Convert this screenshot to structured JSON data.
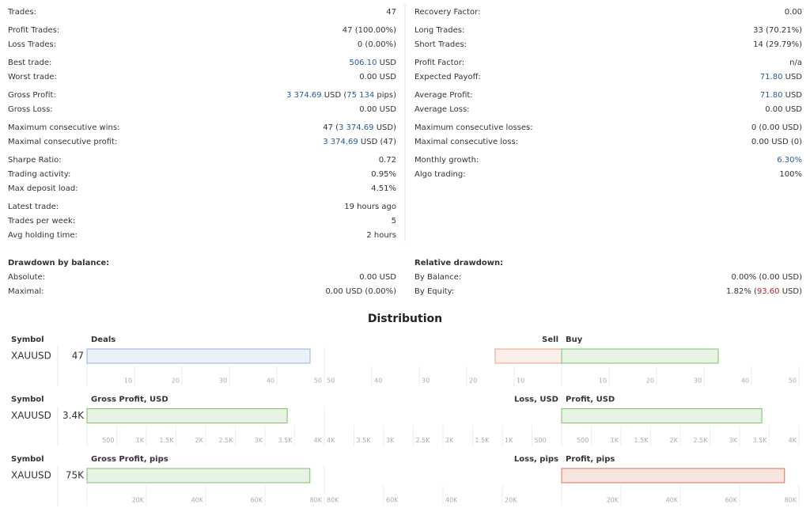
{
  "stats": {
    "left": [
      [
        {
          "label": "Trades:",
          "value": [
            {
              "text": "47"
            }
          ]
        }
      ],
      [
        {
          "label": "Profit Trades:",
          "value": [
            {
              "text": "47 (100.00%)"
            }
          ]
        },
        {
          "label": "Loss Trades:",
          "value": [
            {
              "text": "0 (0.00%)"
            }
          ]
        }
      ],
      [
        {
          "label": "Best trade:",
          "value": [
            {
              "text": "506.10",
              "color": "#2a5a9a"
            },
            {
              "text": " USD"
            }
          ]
        },
        {
          "label": "Worst trade:",
          "value": [
            {
              "text": "0.00 USD"
            }
          ]
        }
      ],
      [
        {
          "label": "Gross Profit:",
          "value": [
            {
              "text": "3 374.69",
              "color": "#2a5a9a"
            },
            {
              "text": " USD ("
            },
            {
              "text": "75 134",
              "color": "#2a5a9a"
            },
            {
              "text": " pips)"
            }
          ]
        },
        {
          "label": "Gross Loss:",
          "value": [
            {
              "text": "0.00 USD"
            }
          ]
        }
      ],
      [
        {
          "label": "Maximum consecutive wins:",
          "value": [
            {
              "text": "47 ("
            },
            {
              "text": "3 374.69",
              "color": "#2a5a9a"
            },
            {
              "text": " USD)"
            }
          ]
        },
        {
          "label": "Maximal consecutive profit:",
          "value": [
            {
              "text": "3 374.69",
              "color": "#2a5a9a"
            },
            {
              "text": " USD (47)"
            }
          ]
        }
      ],
      [
        {
          "label": "Sharpe Ratio:",
          "value": [
            {
              "text": "0.72"
            }
          ]
        },
        {
          "label": "Trading activity:",
          "value": [
            {
              "text": "0.95%"
            }
          ]
        },
        {
          "label": "Max deposit load:",
          "value": [
            {
              "text": "4.51%"
            }
          ]
        }
      ],
      [
        {
          "label": "Latest trade:",
          "value": [
            {
              "text": "19 hours ago"
            }
          ]
        },
        {
          "label": "Trades per week:",
          "value": [
            {
              "text": "5"
            }
          ]
        },
        {
          "label": "Avg holding time:",
          "value": [
            {
              "text": "2 hours"
            }
          ]
        }
      ]
    ],
    "right": [
      [
        {
          "label": "Recovery Factor:",
          "value": [
            {
              "text": "0.00"
            }
          ]
        }
      ],
      [
        {
          "label": "Long Trades:",
          "value": [
            {
              "text": "33 (70.21%)"
            }
          ]
        },
        {
          "label": "Short Trades:",
          "value": [
            {
              "text": "14 (29.79%)"
            }
          ]
        }
      ],
      [
        {
          "label": "Profit Factor:",
          "value": [
            {
              "text": "n/a"
            }
          ]
        },
        {
          "label": "Expected Payoff:",
          "value": [
            {
              "text": "71.80",
              "color": "#2a5a9a"
            },
            {
              "text": " USD"
            }
          ]
        }
      ],
      [
        {
          "label": "Average Profit:",
          "value": [
            {
              "text": "71.80",
              "color": "#2a5a9a"
            },
            {
              "text": " USD"
            }
          ]
        },
        {
          "label": "Average Loss:",
          "value": [
            {
              "text": "0.00 USD"
            }
          ]
        }
      ],
      [
        {
          "label": "Maximum consecutive losses:",
          "value": [
            {
              "text": "0 (0.00 USD)"
            }
          ]
        },
        {
          "label": "Maximal consecutive loss:",
          "value": [
            {
              "text": "0.00 USD (0)"
            }
          ]
        }
      ],
      [
        {
          "label": "Monthly growth:",
          "value": [
            {
              "text": "6.30%",
              "color": "#2a5a9a"
            }
          ]
        },
        {
          "label": "Algo trading:",
          "value": [
            {
              "text": "100%"
            }
          ]
        }
      ]
    ]
  },
  "drawdown": {
    "left": {
      "title": "Drawdown by balance:",
      "rows": [
        {
          "label": "Absolute:",
          "value": [
            {
              "text": "0.00 USD"
            }
          ]
        },
        {
          "label": "Maximal:",
          "value": [
            {
              "text": "0.00 USD (0.00%)"
            }
          ]
        }
      ]
    },
    "right": {
      "title": "Relative drawdown:",
      "rows": [
        {
          "label": "By Balance:",
          "value": [
            {
              "text": "0.00% (0.00 USD)"
            }
          ]
        },
        {
          "label": "By Equity:",
          "value": [
            {
              "text": "1.82% ("
            },
            {
              "text": "93.60",
              "color": "#c0202a"
            },
            {
              "text": " USD)"
            }
          ]
        }
      ]
    }
  },
  "distribution": {
    "title": "Distribution",
    "panels": [
      {
        "symbol_header": "Symbol",
        "symbol": "XAUUSD",
        "value": 47,
        "total": {
          "title": "Deals",
          "xlim": [
            0,
            50
          ],
          "xticks": [
            10,
            20,
            30,
            40,
            50
          ],
          "color": "#8fb3dc"
        },
        "loss": {
          "title": "Sell",
          "xlim": [
            50,
            0
          ],
          "xticks": [
            50,
            40,
            30,
            20,
            10
          ],
          "value": 14,
          "color": "#f0a080"
        },
        "profit": {
          "title": "Buy",
          "xlim": [
            0,
            50
          ],
          "xticks": [
            10,
            20,
            30,
            40,
            50
          ],
          "value": 33,
          "color": "#7cc06a"
        }
      },
      {
        "symbol_header": "Symbol",
        "symbol": "XAUUSD",
        "value": 3374.69,
        "value_label": "3.4K",
        "total": {
          "title": "Gross Profit, USD",
          "xlim": [
            0,
            4000
          ],
          "xticks": [
            500,
            {
              "value": 1000,
              "label": "1K"
            },
            {
              "value": 1500,
              "label": "1.5K"
            },
            {
              "value": 2000,
              "label": "2K"
            },
            {
              "value": 2500,
              "label": "2.5K"
            },
            {
              "value": 3000,
              "label": "3K"
            },
            {
              "value": 3500,
              "label": "3.5K"
            },
            {
              "value": 4000,
              "label": "4K"
            }
          ],
          "color": "#7cc06a"
        },
        "loss": {
          "title": "Loss, USD",
          "xlim": [
            4000,
            0
          ],
          "xticks": [
            {
              "value": 4000,
              "label": "4K"
            },
            {
              "value": 3500,
              "label": "3.5K"
            },
            {
              "value": 3000,
              "label": "3K"
            },
            {
              "value": 2500,
              "label": "2.5K"
            },
            {
              "value": 2000,
              "label": "2K"
            },
            {
              "value": 1500,
              "label": "1.5K"
            },
            {
              "value": 1000,
              "label": "1K"
            },
            500
          ],
          "value": 0,
          "color": "#f0a080"
        },
        "profit": {
          "title": "Profit, USD",
          "xlim": [
            0,
            4000
          ],
          "xticks": [
            500,
            {
              "value": 1000,
              "label": "1K"
            },
            {
              "value": 1500,
              "label": "1.5K"
            },
            {
              "value": 2000,
              "label": "2K"
            },
            {
              "value": 2500,
              "label": "2.5K"
            },
            {
              "value": 3000,
              "label": "3K"
            },
            {
              "value": 3500,
              "label": "3.5K"
            },
            {
              "value": 4000,
              "label": "4K"
            }
          ],
          "value": 3374.69,
          "color": "#7cc06a"
        }
      },
      {
        "symbol_header": "Symbol",
        "symbol": "XAUUSD",
        "value": 75134,
        "value_label": "75K",
        "total": {
          "title": "Gross Profit, pips",
          "xlim": [
            0,
            80000
          ],
          "xticks": [
            {
              "value": 20000,
              "label": "20K"
            },
            {
              "value": 40000,
              "label": "40K"
            },
            {
              "value": 60000,
              "label": "60K"
            },
            {
              "value": 80000,
              "label": "80K"
            }
          ],
          "color": "#7cc06a"
        },
        "loss": {
          "title": "Loss, pips",
          "xlim": [
            80000,
            0
          ],
          "xticks": [
            {
              "value": 80000,
              "label": "80K"
            },
            {
              "value": 60000,
              "label": "60K"
            },
            {
              "value": 40000,
              "label": "40K"
            },
            {
              "value": 20000,
              "label": "20K"
            }
          ],
          "value": 0,
          "color": "#f0a080"
        },
        "profit": {
          "title": "Profit, pips",
          "xlim": [
            0,
            80000
          ],
          "xticks": [
            {
              "value": 20000,
              "label": "20K"
            },
            {
              "value": 40000,
              "label": "40K"
            },
            {
              "value": 60000,
              "label": "60K"
            },
            {
              "value": 80000,
              "label": "80K"
            }
          ],
          "value": 75134,
          "color": "#e07050"
        }
      }
    ]
  }
}
